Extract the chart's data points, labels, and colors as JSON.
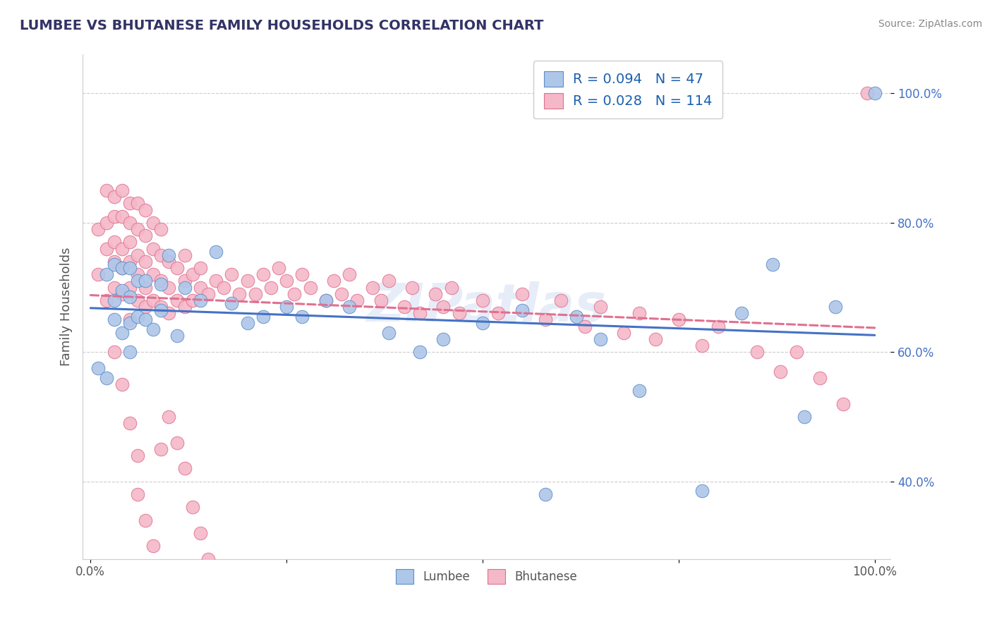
{
  "title": "LUMBEE VS BHUTANESE FAMILY HOUSEHOLDS CORRELATION CHART",
  "source": "Source: ZipAtlas.com",
  "ylabel": "Family Households",
  "xlabel": "",
  "xlim": [
    -0.01,
    1.02
  ],
  "ylim": [
    0.28,
    1.06
  ],
  "yticks": [
    0.4,
    0.6,
    0.8,
    1.0
  ],
  "ytick_labels": [
    "40.0%",
    "60.0%",
    "80.0%",
    "100.0%"
  ],
  "xticks": [
    0.0,
    0.25,
    0.5,
    0.75,
    1.0
  ],
  "xtick_labels": [
    "0.0%",
    "",
    "",
    "",
    "100.0%"
  ],
  "lumbee_color": "#aec6e8",
  "lumbee_edge_color": "#5b8ec9",
  "lumbee_line_color": "#4472c4",
  "bhutanese_color": "#f4b8c8",
  "bhutanese_edge_color": "#e07090",
  "bhutanese_line_color": "#e07090",
  "background_color": "#ffffff",
  "grid_color": "#cccccc",
  "watermark": "ZIPatlas",
  "legend1_label": "R = 0.094   N = 47",
  "legend2_label": "R = 0.028   N = 114",
  "bottom_legend1": "Lumbee",
  "bottom_legend2": "Bhutanese",
  "ytick_color": "#4472c4",
  "lumbee_x": [
    0.01,
    0.02,
    0.02,
    0.03,
    0.03,
    0.03,
    0.04,
    0.04,
    0.04,
    0.05,
    0.05,
    0.05,
    0.05,
    0.06,
    0.06,
    0.07,
    0.07,
    0.08,
    0.09,
    0.09,
    0.1,
    0.11,
    0.12,
    0.14,
    0.16,
    0.18,
    0.2,
    0.22,
    0.25,
    0.27,
    0.3,
    0.33,
    0.38,
    0.42,
    0.45,
    0.5,
    0.55,
    0.58,
    0.62,
    0.65,
    0.7,
    0.78,
    0.83,
    0.87,
    0.91,
    0.95,
    1.0
  ],
  "lumbee_y": [
    0.575,
    0.56,
    0.72,
    0.65,
    0.68,
    0.735,
    0.63,
    0.695,
    0.73,
    0.6,
    0.645,
    0.685,
    0.73,
    0.655,
    0.71,
    0.65,
    0.71,
    0.635,
    0.665,
    0.705,
    0.75,
    0.625,
    0.7,
    0.68,
    0.755,
    0.675,
    0.645,
    0.655,
    0.67,
    0.655,
    0.68,
    0.67,
    0.63,
    0.6,
    0.62,
    0.645,
    0.665,
    0.38,
    0.655,
    0.62,
    0.54,
    0.385,
    0.66,
    0.735,
    0.5,
    0.67,
    1.0
  ],
  "bhutanese_x": [
    0.01,
    0.01,
    0.02,
    0.02,
    0.02,
    0.02,
    0.03,
    0.03,
    0.03,
    0.03,
    0.03,
    0.04,
    0.04,
    0.04,
    0.04,
    0.04,
    0.05,
    0.05,
    0.05,
    0.05,
    0.05,
    0.05,
    0.06,
    0.06,
    0.06,
    0.06,
    0.06,
    0.07,
    0.07,
    0.07,
    0.07,
    0.07,
    0.08,
    0.08,
    0.08,
    0.08,
    0.09,
    0.09,
    0.09,
    0.09,
    0.1,
    0.1,
    0.1,
    0.11,
    0.11,
    0.12,
    0.12,
    0.12,
    0.13,
    0.13,
    0.14,
    0.14,
    0.15,
    0.16,
    0.17,
    0.18,
    0.19,
    0.2,
    0.21,
    0.22,
    0.23,
    0.24,
    0.25,
    0.26,
    0.27,
    0.28,
    0.3,
    0.31,
    0.32,
    0.33,
    0.34,
    0.36,
    0.37,
    0.38,
    0.4,
    0.41,
    0.42,
    0.44,
    0.45,
    0.46,
    0.47,
    0.5,
    0.52,
    0.55,
    0.58,
    0.6,
    0.63,
    0.65,
    0.68,
    0.7,
    0.72,
    0.75,
    0.78,
    0.8,
    0.85,
    0.88,
    0.9,
    0.93,
    0.96,
    0.99,
    0.03,
    0.04,
    0.05,
    0.06,
    0.06,
    0.07,
    0.08,
    0.09,
    0.1,
    0.11,
    0.12,
    0.13,
    0.14,
    0.15
  ],
  "bhutanese_y": [
    0.72,
    0.79,
    0.68,
    0.76,
    0.8,
    0.85,
    0.7,
    0.74,
    0.77,
    0.81,
    0.84,
    0.69,
    0.73,
    0.76,
    0.81,
    0.85,
    0.65,
    0.7,
    0.74,
    0.77,
    0.8,
    0.83,
    0.68,
    0.72,
    0.75,
    0.79,
    0.83,
    0.67,
    0.7,
    0.74,
    0.78,
    0.82,
    0.68,
    0.72,
    0.76,
    0.8,
    0.67,
    0.71,
    0.75,
    0.79,
    0.66,
    0.7,
    0.74,
    0.68,
    0.73,
    0.67,
    0.71,
    0.75,
    0.68,
    0.72,
    0.7,
    0.73,
    0.69,
    0.71,
    0.7,
    0.72,
    0.69,
    0.71,
    0.69,
    0.72,
    0.7,
    0.73,
    0.71,
    0.69,
    0.72,
    0.7,
    0.68,
    0.71,
    0.69,
    0.72,
    0.68,
    0.7,
    0.68,
    0.71,
    0.67,
    0.7,
    0.66,
    0.69,
    0.67,
    0.7,
    0.66,
    0.68,
    0.66,
    0.69,
    0.65,
    0.68,
    0.64,
    0.67,
    0.63,
    0.66,
    0.62,
    0.65,
    0.61,
    0.64,
    0.6,
    0.57,
    0.6,
    0.56,
    0.52,
    1.0,
    0.6,
    0.55,
    0.49,
    0.44,
    0.38,
    0.34,
    0.3,
    0.45,
    0.5,
    0.46,
    0.42,
    0.36,
    0.32,
    0.28
  ]
}
